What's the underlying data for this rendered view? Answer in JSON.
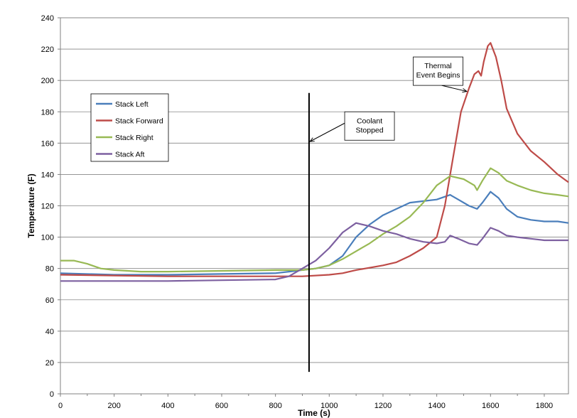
{
  "chart_data": {
    "type": "line",
    "title": "",
    "xlabel": "Time (s)",
    "ylabel": "Temperature (F)",
    "xlim": [
      0,
      1890
    ],
    "ylim": [
      0,
      240
    ],
    "xticks": [
      0,
      200,
      400,
      600,
      800,
      1000,
      1200,
      1400,
      1600,
      1800
    ],
    "yticks": [
      0,
      20,
      40,
      60,
      80,
      100,
      120,
      140,
      160,
      180,
      200,
      220,
      240
    ],
    "grid": "horizontal",
    "legend_position": "left",
    "series": [
      {
        "name": "Stack Left",
        "color": "#4a7ebb",
        "points": [
          [
            0,
            77
          ],
          [
            200,
            76
          ],
          [
            400,
            76
          ],
          [
            600,
            76.5
          ],
          [
            800,
            77
          ],
          [
            850,
            78
          ],
          [
            900,
            79
          ],
          [
            950,
            80
          ],
          [
            1000,
            82
          ],
          [
            1050,
            88
          ],
          [
            1100,
            100
          ],
          [
            1150,
            108
          ],
          [
            1200,
            114
          ],
          [
            1250,
            118
          ],
          [
            1300,
            122
          ],
          [
            1350,
            123
          ],
          [
            1400,
            124
          ],
          [
            1450,
            127
          ],
          [
            1480,
            124
          ],
          [
            1520,
            120
          ],
          [
            1550,
            118
          ],
          [
            1570,
            122
          ],
          [
            1600,
            129
          ],
          [
            1630,
            125
          ],
          [
            1660,
            118
          ],
          [
            1700,
            113
          ],
          [
            1750,
            111
          ],
          [
            1800,
            110
          ],
          [
            1850,
            110
          ],
          [
            1890,
            109
          ]
        ]
      },
      {
        "name": "Stack Forward",
        "color": "#be4b48",
        "points": [
          [
            0,
            76
          ],
          [
            200,
            75.5
          ],
          [
            400,
            75
          ],
          [
            600,
            75
          ],
          [
            800,
            75
          ],
          [
            900,
            75
          ],
          [
            1000,
            76
          ],
          [
            1050,
            77
          ],
          [
            1100,
            79
          ],
          [
            1200,
            82
          ],
          [
            1250,
            84
          ],
          [
            1300,
            88
          ],
          [
            1350,
            93
          ],
          [
            1400,
            100
          ],
          [
            1430,
            120
          ],
          [
            1460,
            150
          ],
          [
            1490,
            180
          ],
          [
            1520,
            195
          ],
          [
            1540,
            204
          ],
          [
            1555,
            206
          ],
          [
            1565,
            203
          ],
          [
            1575,
            212
          ],
          [
            1590,
            222
          ],
          [
            1600,
            224
          ],
          [
            1620,
            215
          ],
          [
            1640,
            200
          ],
          [
            1660,
            182
          ],
          [
            1700,
            166
          ],
          [
            1750,
            155
          ],
          [
            1800,
            148
          ],
          [
            1850,
            140
          ],
          [
            1890,
            135
          ]
        ]
      },
      {
        "name": "Stack Right",
        "color": "#98b954",
        "points": [
          [
            0,
            85
          ],
          [
            50,
            85
          ],
          [
            100,
            83
          ],
          [
            150,
            80
          ],
          [
            200,
            79
          ],
          [
            300,
            78
          ],
          [
            400,
            78
          ],
          [
            600,
            78.5
          ],
          [
            800,
            79
          ],
          [
            900,
            79
          ],
          [
            950,
            80
          ],
          [
            1000,
            82
          ],
          [
            1050,
            86
          ],
          [
            1100,
            91
          ],
          [
            1150,
            96
          ],
          [
            1200,
            102
          ],
          [
            1250,
            107
          ],
          [
            1300,
            113
          ],
          [
            1350,
            122
          ],
          [
            1400,
            133
          ],
          [
            1450,
            139
          ],
          [
            1500,
            137
          ],
          [
            1540,
            133
          ],
          [
            1550,
            130
          ],
          [
            1570,
            136
          ],
          [
            1600,
            144
          ],
          [
            1630,
            141
          ],
          [
            1660,
            136
          ],
          [
            1700,
            133
          ],
          [
            1750,
            130
          ],
          [
            1800,
            128
          ],
          [
            1850,
            127
          ],
          [
            1890,
            126
          ]
        ]
      },
      {
        "name": "Stack Aft",
        "color": "#7d60a0",
        "points": [
          [
            0,
            72
          ],
          [
            200,
            72
          ],
          [
            400,
            72
          ],
          [
            600,
            72.5
          ],
          [
            800,
            73
          ],
          [
            850,
            75
          ],
          [
            900,
            80
          ],
          [
            950,
            85
          ],
          [
            1000,
            93
          ],
          [
            1050,
            103
          ],
          [
            1100,
            109
          ],
          [
            1150,
            107
          ],
          [
            1200,
            104
          ],
          [
            1250,
            102
          ],
          [
            1300,
            99
          ],
          [
            1350,
            97
          ],
          [
            1400,
            96
          ],
          [
            1430,
            97
          ],
          [
            1450,
            101
          ],
          [
            1480,
            99
          ],
          [
            1520,
            96
          ],
          [
            1550,
            95
          ],
          [
            1570,
            99
          ],
          [
            1600,
            106
          ],
          [
            1630,
            104
          ],
          [
            1660,
            101
          ],
          [
            1700,
            100
          ],
          [
            1750,
            99
          ],
          [
            1800,
            98
          ],
          [
            1850,
            98
          ],
          [
            1890,
            98
          ]
        ]
      }
    ],
    "vertical_line": {
      "x": 925,
      "y_bottom": 14,
      "y_top": 192
    },
    "annotations": [
      {
        "lines": [
          "Coolant",
          "Stopped"
        ],
        "box_x": 1150,
        "box_y": 180,
        "arrow_to": [
          928,
          161
        ]
      },
      {
        "lines": [
          "Thermal",
          "Event Begins"
        ],
        "box_x": 1405,
        "box_y": 215,
        "arrow_to": [
          1512,
          193
        ]
      }
    ]
  }
}
